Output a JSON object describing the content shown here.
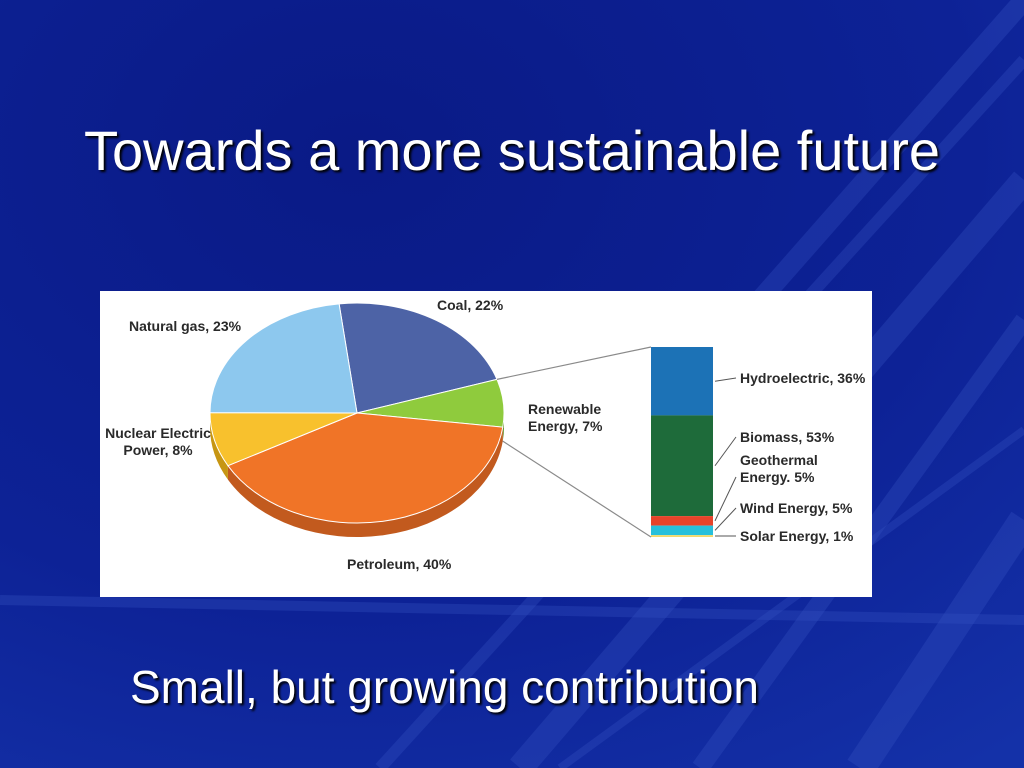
{
  "slide": {
    "title": "Towards a more sustainable future",
    "subtitle": "Small, but growing contribution"
  },
  "chart_data": [
    {
      "type": "pie",
      "categories": [
        "Coal",
        "Renewable Energy",
        "Petroleum",
        "Nuclear Electric Power",
        "Natural gas"
      ],
      "values": [
        22,
        7,
        40,
        8,
        23
      ],
      "labels": [
        "Coal, 22%",
        "Renewable Energy, 7%",
        "Petroleum, 40%",
        "Nuclear Electric Power, 8%",
        "Natural gas, 23%"
      ],
      "colors": [
        "#4d63a6",
        "#8fcb3d",
        "#f07427",
        "#f8c12d",
        "#8dc8ee"
      ],
      "side_colors": [
        "#2e3f78",
        "#5f8f22",
        "#c25a1e",
        "#c79613",
        "#5b98c4"
      ]
    },
    {
      "type": "bar",
      "stacked": true,
      "categories": [
        "Hydroelectric",
        "Biomass",
        "Geothermal Energy",
        "Wind Energy",
        "Solar Energy"
      ],
      "values": [
        36,
        53,
        5,
        5,
        1
      ],
      "labels": [
        "Hydroelectric, 36%",
        "Biomass, 53%",
        "Geothermal Energy. 5%",
        "Wind Energy, 5%",
        "Solar Energy, 1%"
      ],
      "colors": [
        "#1c72b6",
        "#1e6b3a",
        "#e8432a",
        "#27c0db",
        "#f2d96b"
      ]
    }
  ],
  "colors": {
    "background": "#0b1e8c",
    "text": "#ffffff"
  }
}
